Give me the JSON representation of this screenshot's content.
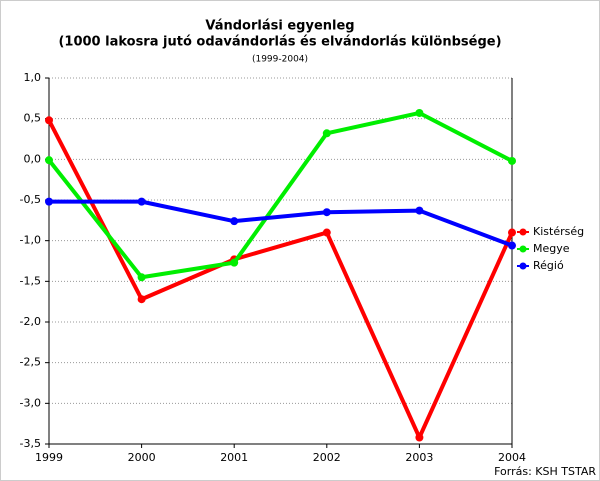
{
  "chart_data": {
    "type": "line",
    "title": "Vándorlási egyenleg",
    "subtitle": "(1000 lakosra jutó odavándorlás és elvándorlás különbsége)",
    "period": "(1999-2004)",
    "source": "Forrás: KSH TSTAR",
    "categories": [
      "1999",
      "2000",
      "2001",
      "2002",
      "2003",
      "2004"
    ],
    "series": [
      {
        "name": "Kistérség",
        "color": "#ff0000",
        "values": [
          0.48,
          -1.72,
          -1.23,
          -0.9,
          -3.42,
          -0.9
        ]
      },
      {
        "name": "Megye",
        "color": "#00ee00",
        "values": [
          -0.01,
          -1.45,
          -1.27,
          0.32,
          0.57,
          -0.02
        ]
      },
      {
        "name": "Régió",
        "color": "#0000ff",
        "values": [
          -0.52,
          -0.52,
          -0.76,
          -0.65,
          -0.63,
          -1.06
        ]
      }
    ],
    "ylim": [
      -3.5,
      1.0
    ],
    "yticks": [
      {
        "value": -3.5,
        "label": "-3,5"
      },
      {
        "value": -3.0,
        "label": "-3,0"
      },
      {
        "value": -2.5,
        "label": "-2,5"
      },
      {
        "value": -2.0,
        "label": "-2,0"
      },
      {
        "value": -1.5,
        "label": "-1,5"
      },
      {
        "value": -1.0,
        "label": "-1,0"
      },
      {
        "value": -0.5,
        "label": "-0,5"
      },
      {
        "value": 0.0,
        "label": "0,0"
      },
      {
        "value": 0.5,
        "label": "0,5"
      },
      {
        "value": 1.0,
        "label": "1,0"
      }
    ],
    "grid": true
  }
}
